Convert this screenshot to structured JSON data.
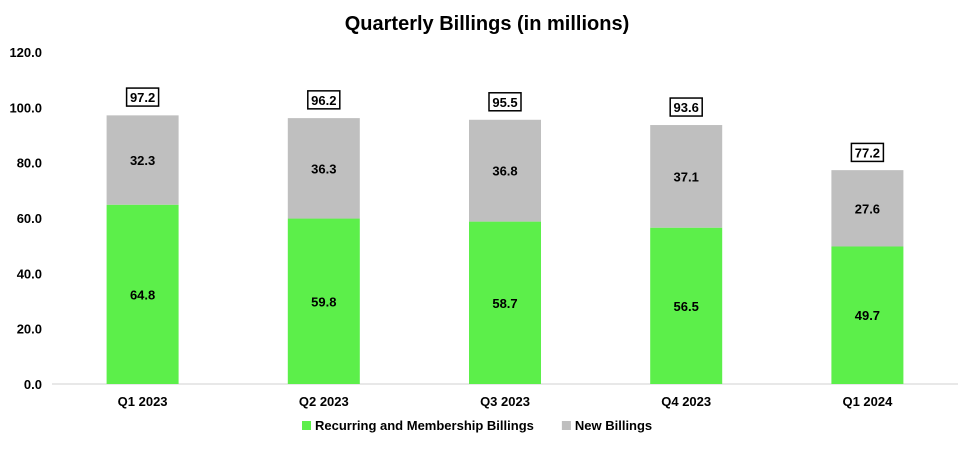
{
  "chart_data": {
    "type": "bar",
    "stacked": true,
    "title": "Quarterly Billings (in millions)",
    "categories": [
      "Q1 2023",
      "Q2 2023",
      "Q3 2023",
      "Q4 2023",
      "Q1 2024"
    ],
    "series": [
      {
        "name": "Recurring and Membership Billings",
        "color": "#5CEF4A",
        "values": [
          64.8,
          59.8,
          58.7,
          56.5,
          49.7
        ],
        "labels": [
          "64.8",
          "59.8",
          "58.7",
          "56.5",
          "49.7"
        ]
      },
      {
        "name": "New Billings",
        "color": "#BFBFBF",
        "values": [
          32.3,
          36.3,
          36.8,
          37.1,
          27.6
        ],
        "labels": [
          "32.3",
          "36.3",
          "36.8",
          "37.1",
          "27.6"
        ]
      }
    ],
    "totals": [
      "97.2",
      "96.2",
      "95.5",
      "93.6",
      "77.2"
    ],
    "ylim": [
      0,
      120
    ],
    "yticks": [
      "0.0",
      "20.0",
      "40.0",
      "60.0",
      "80.0",
      "100.0",
      "120.0"
    ],
    "xlabel": "",
    "ylabel": "",
    "grid": false,
    "legend_position": "bottom"
  }
}
